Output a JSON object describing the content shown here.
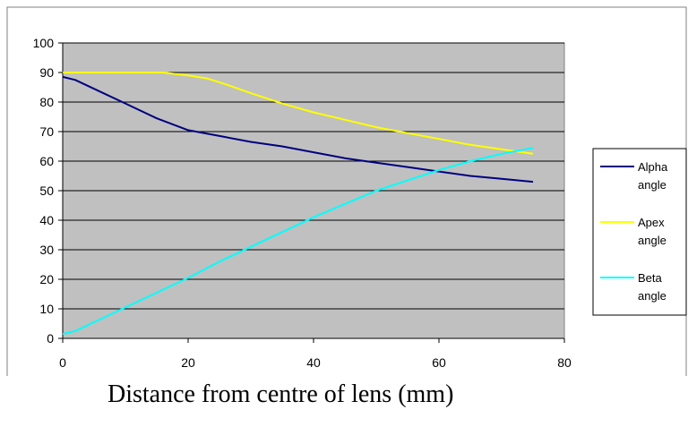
{
  "chart_data": {
    "type": "line",
    "title": "",
    "xlabel": "Distance from centre of lens (mm)",
    "ylabel": "",
    "xlim": [
      0,
      80
    ],
    "ylim": [
      0,
      100
    ],
    "x_ticks": [
      0,
      20,
      40,
      60,
      80
    ],
    "y_ticks": [
      0,
      10,
      20,
      30,
      40,
      50,
      60,
      70,
      80,
      90,
      100
    ],
    "grid": "horizontal",
    "plot_background": "#c0c0c0",
    "legend_position": "right",
    "series": [
      {
        "name_lines": [
          "Alpha",
          "angle"
        ],
        "color": "#000080",
        "x": [
          0,
          2,
          5,
          10,
          15,
          20,
          25,
          30,
          35,
          40,
          45,
          50,
          55,
          60,
          65,
          70,
          75
        ],
        "y": [
          88.5,
          87.5,
          84.5,
          79.5,
          74.5,
          70.5,
          68.5,
          66.5,
          65,
          63,
          61,
          59.5,
          58,
          56.5,
          55,
          54,
          53
        ]
      },
      {
        "name_lines": [
          "Apex",
          "angle"
        ],
        "color": "#ffff00",
        "x": [
          0,
          5,
          10,
          16,
          20,
          23,
          26,
          30,
          35,
          40,
          45,
          50,
          55,
          60,
          65,
          70,
          75
        ],
        "y": [
          90,
          90,
          90,
          90,
          89,
          88,
          86,
          83,
          79.5,
          76.5,
          74,
          71.5,
          69.5,
          67.5,
          65.5,
          64,
          62.5
        ]
      },
      {
        "name_lines": [
          "Beta",
          "angle"
        ],
        "color": "#00ffff",
        "x": [
          0,
          2,
          5,
          10,
          15,
          20,
          25,
          30,
          35,
          40,
          45,
          50,
          55,
          60,
          65,
          70,
          75
        ],
        "y": [
          1.5,
          2.5,
          5.5,
          10.5,
          15.5,
          20.5,
          26,
          31,
          36,
          41,
          45.5,
          50,
          53.5,
          57,
          60,
          62.5,
          64.5
        ]
      }
    ]
  }
}
